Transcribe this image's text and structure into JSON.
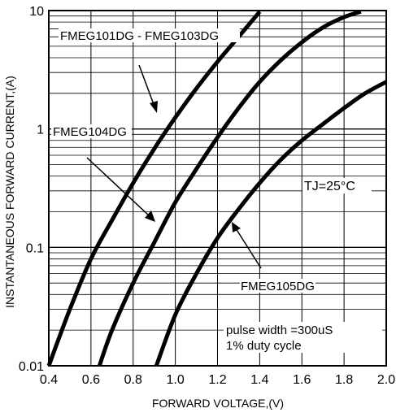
{
  "chart_data": {
    "type": "line",
    "title": "",
    "xlabel": "FORWARD VOLTAGE,(V)",
    "ylabel": "INSTANTANEOUS FORWARD CURRENT,(A)",
    "x_scale": "linear",
    "y_scale": "log",
    "xlim": [
      0.4,
      2.0
    ],
    "ylim": [
      0.01,
      10
    ],
    "x_ticks": [
      "0.4",
      "0.6",
      "0.8",
      "1.0",
      "1.2",
      "1.4",
      "1.6",
      "1.8",
      "2.0"
    ],
    "y_ticks": [
      "0.01",
      "0.1",
      "1",
      "10"
    ],
    "grid": true,
    "series": [
      {
        "name": "FMEG101DG - FMEG103DG",
        "x": [
          0.4,
          0.5,
          0.6,
          0.7,
          0.8,
          0.9,
          1.0,
          1.1,
          1.2,
          1.3,
          1.4
        ],
        "y": [
          0.01,
          0.03,
          0.08,
          0.17,
          0.35,
          0.68,
          1.25,
          2.2,
          3.7,
          6.0,
          9.8
        ]
      },
      {
        "name": "FMEG104DG",
        "x": [
          0.64,
          0.7,
          0.8,
          0.9,
          1.0,
          1.1,
          1.2,
          1.3,
          1.4,
          1.5,
          1.6,
          1.7,
          1.8,
          1.88
        ],
        "y": [
          0.01,
          0.02,
          0.05,
          0.11,
          0.24,
          0.46,
          0.85,
          1.5,
          2.5,
          3.8,
          5.4,
          7.2,
          8.8,
          9.8
        ]
      },
      {
        "name": "FMEG105DG",
        "x": [
          0.91,
          1.0,
          1.1,
          1.2,
          1.3,
          1.4,
          1.5,
          1.6,
          1.7,
          1.8,
          1.9,
          2.0
        ],
        "y": [
          0.01,
          0.027,
          0.06,
          0.12,
          0.21,
          0.35,
          0.55,
          0.8,
          1.1,
          1.5,
          2.0,
          2.5
        ]
      }
    ],
    "annotations": {
      "temperature": "TJ=25°C",
      "pulse_line1": "pulse width =300uS",
      "pulse_line2": "1% duty cycle"
    }
  }
}
